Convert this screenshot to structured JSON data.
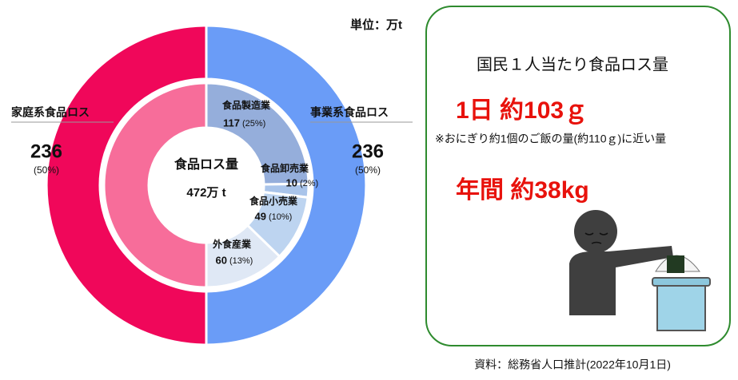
{
  "chart_data": {
    "type": "nested-donut",
    "unit": "単位：万t",
    "center_text": [
      "食品ロス量",
      "472万 t"
    ],
    "outer": {
      "categories": [
        "事業系食品ロス",
        "家庭系食品ロス"
      ],
      "values": [
        236,
        236
      ],
      "percent_labels": [
        "(50%)",
        "(50%)"
      ],
      "colors": [
        "#6a9cf7",
        "#f0075a"
      ]
    },
    "inner": {
      "categories": [
        "食品製造業",
        "食品卸売業",
        "食品小売業",
        "外食産業",
        null
      ],
      "values": [
        117,
        10,
        49,
        60,
        236
      ],
      "percent_labels": [
        "(25%)",
        "(2%)",
        "(10%)",
        "(13%)",
        null
      ],
      "colors": [
        "#95aedb",
        "#a9c4ea",
        "#bdd4f0",
        "#dfe8f5",
        "#f76d9a"
      ]
    }
  },
  "panel": {
    "title": "国民１人当たり食品ロス量",
    "daily": "1日 約103ｇ",
    "daily_note": "※おにぎり約1個のご飯の量(約110ｇ)に近い量",
    "annual": "年間 約38kg"
  },
  "source": "資料：総務省人口推計(2022年10月1日)"
}
